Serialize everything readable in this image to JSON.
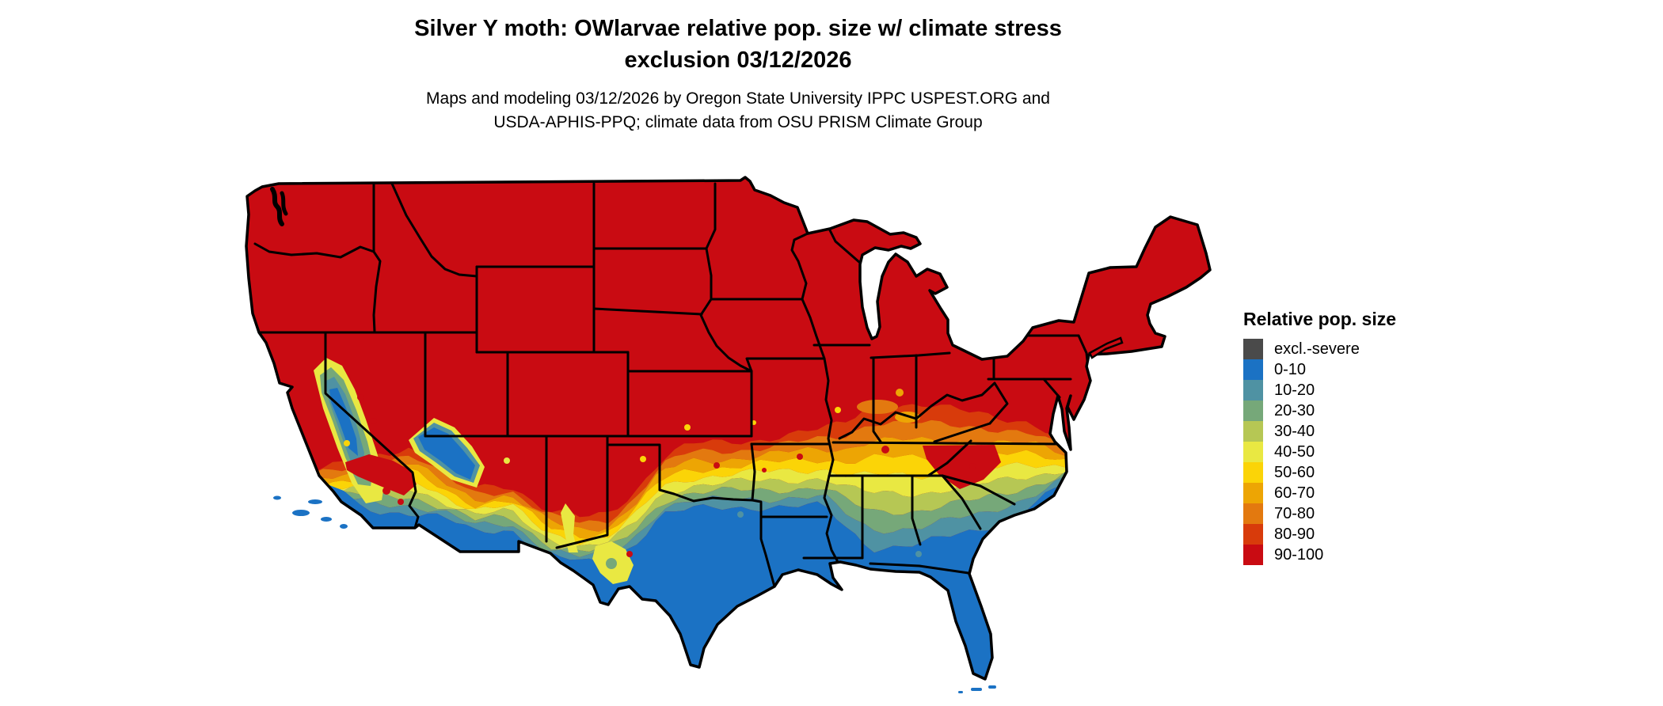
{
  "title": {
    "line1": "Silver Y moth: OWlarvae relative pop. size w/ climate stress",
    "line2": "exclusion 03/12/2026"
  },
  "subtitle": {
    "line1": "Maps and modeling 03/12/2026 by Oregon State University IPPC USPEST.ORG and",
    "line2": "USDA-APHIS-PPQ; climate data from OSU PRISM Climate Group"
  },
  "legend": {
    "title": "Relative pop. size",
    "items": [
      {
        "label": "excl.-severe",
        "color": "#4a4a4a"
      },
      {
        "label": "0-10",
        "color": "#1b72c4"
      },
      {
        "label": "10-20",
        "color": "#4f92a3"
      },
      {
        "label": "20-30",
        "color": "#76a879"
      },
      {
        "label": "30-40",
        "color": "#b6c754"
      },
      {
        "label": "40-50",
        "color": "#e9e842"
      },
      {
        "label": "50-60",
        "color": "#fbd407"
      },
      {
        "label": "60-70",
        "color": "#eda504"
      },
      {
        "label": "70-80",
        "color": "#e3790f"
      },
      {
        "label": "80-90",
        "color": "#d83b0b"
      },
      {
        "label": "90-100",
        "color": "#c90b12"
      }
    ]
  },
  "map": {
    "region": "Continental United States",
    "border_color": "#000000",
    "water_color": "#ffffff"
  }
}
